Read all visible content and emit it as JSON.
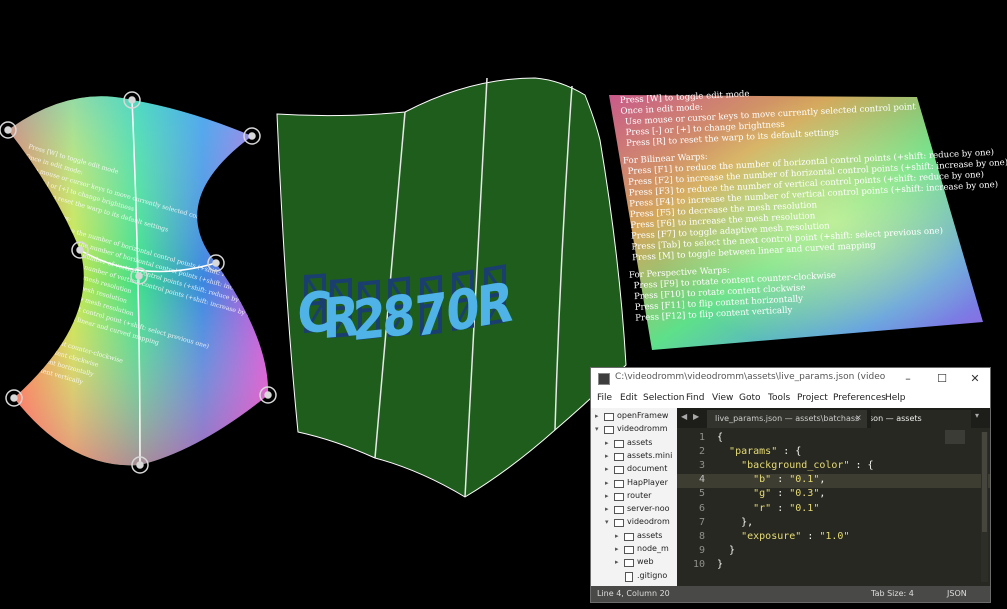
{
  "projection": {
    "left_warp": {
      "lines": [
        "Press [W] to toggle edit mode",
        "Once in edit mode:",
        "Use mouse or cursor keys to move currently selected control point",
        "Press [-] or [+] to change brightness",
        "Press [R] to reset the warp to its default settings",
        "For Bilinear Warps:",
        "Press [F1] to reduce the number of horizontal control points (+shift: reduce by one)",
        "Press [F2] to increase the number of horizontal control points (+shift: increase by one)",
        "Press [F3] to reduce the number of vertical control points (+shift: reduce by one)",
        "Press [F4] to increase the number of vertical control points (+shift: increase by one)",
        "Press [F5] to decrease the mesh resolution",
        "Press [F6] to increase the mesh resolution",
        "Press [F7] to toggle adaptive mesh resolution",
        "Press [Tab] to select the next control point (+shift: select previous one)",
        "Press [M] to toggle between linear and curved mapping",
        "For Perspective Warps:",
        "Press [F9] to rotate content counter-clockwise",
        "Press [F10] to rotate content clockwise",
        "Press [F11] to flip content horizontally",
        "Press [F12] to flip content vertically"
      ]
    },
    "right_warp": {
      "lines": [
        "Press [W] to toggle edit mode",
        "Once in edit mode:",
        "Use mouse or cursor keys to move currently selected control point",
        "Press [-] or [+] to change brightness",
        "Press [R] to reset the warp to its default settings",
        "For Bilinear Warps:",
        "Press [F1] to reduce the number of horizontal control points (+shift: reduce by one)",
        "Press [F2] to increase the number of horizontal control points (+shift: increase by one)",
        "Press [F3] to reduce the number of vertical control points (+shift: reduce by one)",
        "Press [F4] to increase the number of vertical control points (+shift: increase by one)",
        "Press [F5] to decrease the mesh resolution",
        "Press [F6] to increase the mesh resolution",
        "Press [F7] to toggle adaptive mesh resolution",
        "Press [Tab] to select the next control point (+shift: select previous one)",
        "Press [M] to toggle between linear and curved mapping",
        "For Perspective Warps:",
        "Press [F9] to rotate content counter-clockwise",
        "Press [F10] to rotate content clockwise",
        "Press [F11] to flip content horizontally",
        "Press [F12] to flip content vertically"
      ]
    },
    "center_display": {
      "glyphs": "CR2870R",
      "colors": {
        "segment_on": "#4fb3e8",
        "segment_off": "#1a3f6e",
        "panel": "#1e5c1c"
      }
    }
  },
  "window": {
    "title": "C:\\videodromm\\videodromm\\assets\\live_params.json (videodromm) - Su...",
    "controls": {
      "minimize": "–",
      "maximize": "☐",
      "close": "✕"
    },
    "menu": [
      "File",
      "Edit",
      "Selection",
      "Find",
      "View",
      "Goto",
      "Tools",
      "Project",
      "Preferences",
      "Help"
    ],
    "sidebar": [
      {
        "label": "openFramew",
        "type": "folder",
        "expanded": false,
        "indent": 0
      },
      {
        "label": "videodromm",
        "type": "folder",
        "expanded": true,
        "indent": 0
      },
      {
        "label": "assets",
        "type": "folder",
        "expanded": false,
        "indent": 1
      },
      {
        "label": "assets.mini",
        "type": "folder",
        "expanded": false,
        "indent": 1
      },
      {
        "label": "document",
        "type": "folder",
        "expanded": false,
        "indent": 1
      },
      {
        "label": "HapPlayer",
        "type": "folder",
        "expanded": false,
        "indent": 1
      },
      {
        "label": "router",
        "type": "folder",
        "expanded": false,
        "indent": 1
      },
      {
        "label": "server-noo",
        "type": "folder",
        "expanded": false,
        "indent": 1
      },
      {
        "label": "videodrom",
        "type": "folder",
        "expanded": true,
        "indent": 1
      },
      {
        "label": "assets",
        "type": "folder",
        "expanded": false,
        "indent": 2
      },
      {
        "label": "node_m",
        "type": "folder",
        "expanded": false,
        "indent": 2
      },
      {
        "label": "web",
        "type": "folder",
        "expanded": false,
        "indent": 2
      },
      {
        "label": ".gitigno",
        "type": "file",
        "expanded": false,
        "indent": 2
      }
    ],
    "tabs": [
      {
        "label": "live_params.json — assets\\batchass",
        "close": "×",
        "active": false
      },
      {
        "label": "son — assets",
        "active": true
      }
    ],
    "code_lines": [
      "{",
      "  \"params\" : {",
      "    \"background_color\" : {",
      "      \"b\" : \"0.1\",",
      "      \"g\" : \"0.3\",",
      "      \"r\" : \"0.1\"",
      "    },",
      "    \"exposure\" : \"1.0\"",
      "  }",
      "}"
    ],
    "current_line": 4,
    "status": {
      "position": "Line 4, Column 20",
      "tab_size": "Tab Size: 4",
      "syntax": "JSON"
    },
    "colors": {
      "editor_bg": "#272822",
      "string": "#e6db74",
      "text": "#f8f8f2",
      "gutter": "#90908a"
    }
  }
}
